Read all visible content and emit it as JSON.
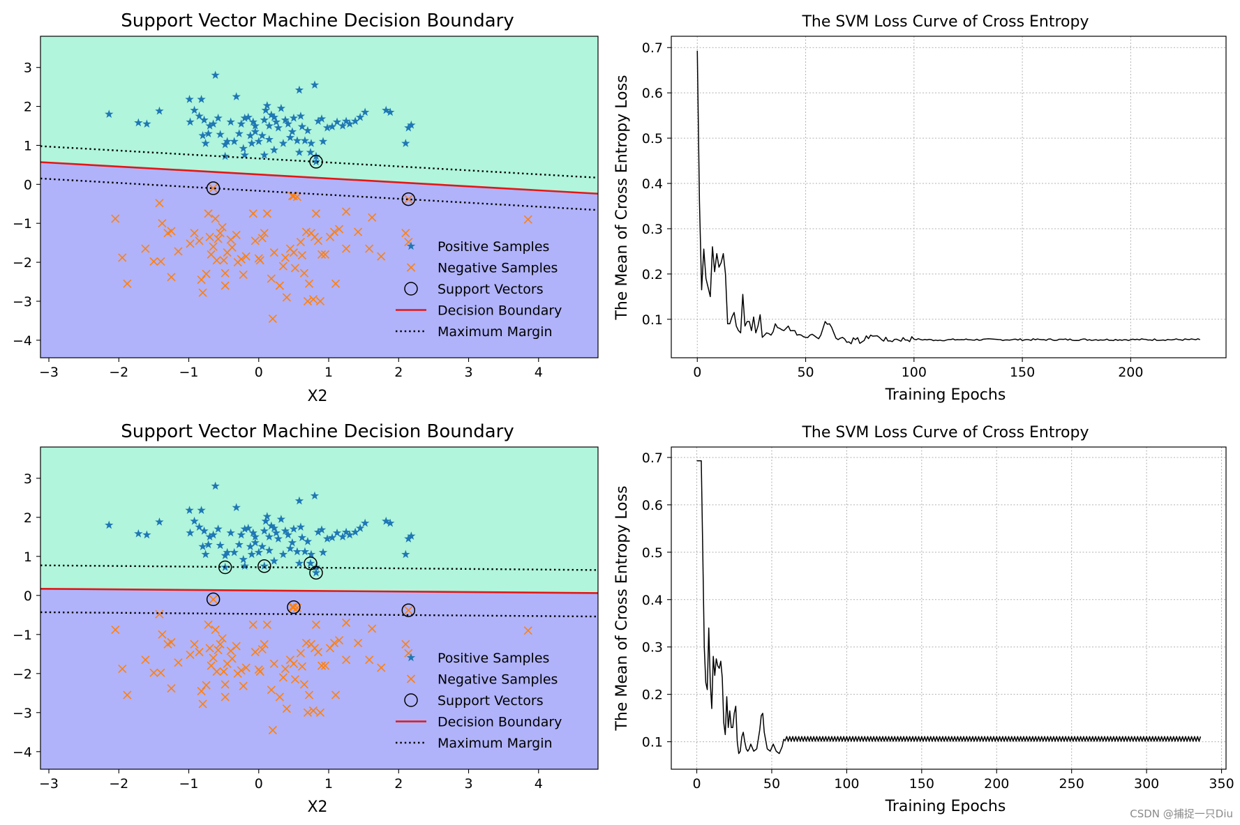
{
  "colors": {
    "positive_region": "#b0f5dc",
    "negative_region": "#b0b3fa",
    "positive_marker": "#1f77b4",
    "negative_marker": "#ff7f0e",
    "boundary": "#e01818",
    "margin": "#000000",
    "support": "#000000",
    "loss": "#000000",
    "grid": "#b0b0b0"
  },
  "watermark": "CSDN @捕捉一只Diu",
  "positive_samples": [
    [
      -2.14,
      1.8
    ],
    [
      -1.72,
      1.58
    ],
    [
      -1.6,
      1.55
    ],
    [
      -1.42,
      1.88
    ],
    [
      -0.99,
      2.18
    ],
    [
      -0.82,
      2.18
    ],
    [
      -0.98,
      1.6
    ],
    [
      -0.92,
      1.9
    ],
    [
      -0.85,
      1.75
    ],
    [
      -0.78,
      1.65
    ],
    [
      -0.7,
      1.5
    ],
    [
      -0.62,
      2.8
    ],
    [
      -0.58,
      1.7
    ],
    [
      -0.65,
      1.55
    ],
    [
      -0.72,
      1.3
    ],
    [
      -0.8,
      1.25
    ],
    [
      -0.76,
      1.05
    ],
    [
      -0.55,
      1.28
    ],
    [
      -0.48,
      1.02
    ],
    [
      -0.45,
      1.1
    ],
    [
      -0.35,
      1.1
    ],
    [
      -0.32,
      2.25
    ],
    [
      -0.25,
      1.55
    ],
    [
      -0.2,
      1.7
    ],
    [
      -0.15,
      1.72
    ],
    [
      -0.08,
      1.6
    ],
    [
      -0.05,
      1.35
    ],
    [
      -0.12,
      1.25
    ],
    [
      -0.22,
      0.92
    ],
    [
      -0.1,
      1.05
    ],
    [
      0.0,
      1.1
    ],
    [
      0.05,
      1.25
    ],
    [
      0.08,
      1.65
    ],
    [
      0.1,
      1.9
    ],
    [
      0.12,
      2.02
    ],
    [
      0.15,
      1.5
    ],
    [
      0.18,
      1.78
    ],
    [
      0.22,
      1.72
    ],
    [
      0.25,
      1.6
    ],
    [
      0.28,
      1.45
    ],
    [
      0.32,
      1.95
    ],
    [
      0.38,
      1.65
    ],
    [
      0.42,
      1.55
    ],
    [
      0.5,
      1.7
    ],
    [
      0.55,
      1.12
    ],
    [
      0.58,
      2.42
    ],
    [
      0.62,
      1.48
    ],
    [
      0.66,
      1.12
    ],
    [
      0.7,
      1.38
    ],
    [
      0.75,
      1.05
    ],
    [
      0.8,
      2.55
    ],
    [
      0.85,
      1.62
    ],
    [
      0.9,
      1.68
    ],
    [
      0.92,
      1.1
    ],
    [
      0.98,
      1.45
    ],
    [
      1.05,
      1.48
    ],
    [
      1.12,
      1.6
    ],
    [
      1.2,
      1.5
    ],
    [
      1.25,
      1.62
    ],
    [
      1.3,
      1.55
    ],
    [
      1.38,
      1.62
    ],
    [
      1.45,
      1.72
    ],
    [
      1.52,
      1.85
    ],
    [
      1.82,
      1.9
    ],
    [
      1.88,
      1.85
    ],
    [
      2.1,
      1.05
    ],
    [
      2.14,
      1.45
    ],
    [
      2.18,
      1.52
    ],
    [
      -0.2,
      0.75
    ],
    [
      0.22,
      0.88
    ],
    [
      0.58,
      0.82
    ],
    [
      0.82,
      0.58
    ],
    [
      -0.48,
      0.72
    ],
    [
      0.08,
      0.75
    ],
    [
      0.74,
      0.82
    ],
    [
      0.82,
      0.72
    ],
    [
      -0.05,
      1.5
    ],
    [
      0.45,
      1.2
    ],
    [
      0.35,
      1.05
    ],
    [
      0.6,
      1.75
    ],
    [
      -0.4,
      1.6
    ],
    [
      -0.28,
      1.3
    ],
    [
      0.15,
      1.15
    ],
    [
      0.48,
      1.35
    ]
  ],
  "negative_samples": [
    [
      -2.05,
      -0.88
    ],
    [
      -1.95,
      -1.88
    ],
    [
      -1.88,
      -2.55
    ],
    [
      -1.62,
      -1.65
    ],
    [
      -1.5,
      -1.98
    ],
    [
      -1.42,
      -0.48
    ],
    [
      -1.4,
      -1.98
    ],
    [
      -1.38,
      -1.0
    ],
    [
      -1.3,
      -1.25
    ],
    [
      -1.25,
      -1.2
    ],
    [
      -1.25,
      -2.38
    ],
    [
      -0.98,
      -1.52
    ],
    [
      -0.92,
      -1.25
    ],
    [
      -0.85,
      -1.45
    ],
    [
      -0.82,
      -2.45
    ],
    [
      -0.8,
      -2.78
    ],
    [
      -0.75,
      -2.3
    ],
    [
      -0.72,
      -0.75
    ],
    [
      -0.7,
      -1.35
    ],
    [
      -0.68,
      -1.8
    ],
    [
      -0.65,
      -1.6
    ],
    [
      -0.62,
      -0.88
    ],
    [
      -0.58,
      -1.4
    ],
    [
      -0.55,
      -1.25
    ],
    [
      -0.52,
      -1.1
    ],
    [
      -0.5,
      -1.95
    ],
    [
      -0.48,
      -2.28
    ],
    [
      -0.48,
      -2.6
    ],
    [
      -0.45,
      -1.75
    ],
    [
      -0.4,
      -1.42
    ],
    [
      -0.38,
      -1.62
    ],
    [
      -0.32,
      -1.3
    ],
    [
      -0.25,
      -1.92
    ],
    [
      -0.22,
      -2.32
    ],
    [
      -0.18,
      -1.85
    ],
    [
      -0.08,
      -0.75
    ],
    [
      -0.05,
      -1.45
    ],
    [
      0.0,
      -1.9
    ],
    [
      0.02,
      -1.95
    ],
    [
      0.05,
      -1.38
    ],
    [
      0.08,
      -1.25
    ],
    [
      0.12,
      -0.75
    ],
    [
      0.18,
      -2.42
    ],
    [
      0.2,
      -3.45
    ],
    [
      0.22,
      -1.75
    ],
    [
      0.3,
      -2.6
    ],
    [
      0.35,
      -2.1
    ],
    [
      0.38,
      -1.88
    ],
    [
      0.45,
      -1.65
    ],
    [
      0.48,
      -0.3
    ],
    [
      0.5,
      -1.75
    ],
    [
      0.52,
      -2.15
    ],
    [
      0.55,
      -0.32
    ],
    [
      0.6,
      -1.48
    ],
    [
      0.62,
      -1.82
    ],
    [
      0.65,
      -2.28
    ],
    [
      0.68,
      -1.22
    ],
    [
      0.7,
      -3.0
    ],
    [
      0.72,
      -2.55
    ],
    [
      0.75,
      -1.25
    ],
    [
      0.78,
      -2.95
    ],
    [
      0.8,
      -1.35
    ],
    [
      0.82,
      -0.75
    ],
    [
      0.85,
      -1.45
    ],
    [
      0.88,
      -3.0
    ],
    [
      0.9,
      -1.8
    ],
    [
      0.95,
      -1.8
    ],
    [
      1.02,
      -1.35
    ],
    [
      1.08,
      -1.22
    ],
    [
      1.1,
      -2.55
    ],
    [
      1.15,
      -1.15
    ],
    [
      1.25,
      -0.7
    ],
    [
      1.42,
      -1.22
    ],
    [
      1.58,
      -1.65
    ],
    [
      1.62,
      -0.85
    ],
    [
      1.75,
      -1.85
    ],
    [
      2.1,
      -1.25
    ],
    [
      2.14,
      -1.48
    ],
    [
      2.14,
      -0.38
    ],
    [
      3.85,
      -0.9
    ],
    [
      -0.65,
      -0.1
    ],
    [
      0.5,
      -0.3
    ],
    [
      1.25,
      -1.65
    ],
    [
      -1.15,
      -1.72
    ],
    [
      -0.3,
      -2.0
    ],
    [
      0.4,
      -2.9
    ],
    [
      -0.6,
      -1.95
    ]
  ],
  "plots": [
    {
      "title": "Support Vector Machine Decision Boundary",
      "xlabel": "X2",
      "xlim": [
        -3.12,
        4.85
      ],
      "ylim": [
        -4.45,
        3.8
      ],
      "xticks": [
        -3,
        -2,
        -1,
        0,
        1,
        2,
        3,
        4
      ],
      "yticks": [
        -4,
        -3,
        -2,
        -1,
        0,
        1,
        2,
        3
      ],
      "boundary_line": {
        "x": [
          -3.12,
          4.85
        ],
        "y": [
          0.57,
          -0.24
        ]
      },
      "margin_upper": {
        "x": [
          -3.12,
          4.85
        ],
        "y": [
          0.98,
          0.17
        ]
      },
      "margin_lower": {
        "x": [
          -3.12,
          4.85
        ],
        "y": [
          0.15,
          -0.66
        ]
      },
      "support_vectors": [
        [
          -0.65,
          -0.1
        ],
        [
          0.82,
          0.58
        ],
        [
          2.14,
          -0.38
        ]
      ],
      "legend": [
        "Positive Samples",
        "Negative Samples",
        "Support Vectors",
        "Decision Boundary",
        "Maximum Margin"
      ]
    },
    {
      "title": "Support Vector Machine Decision Boundary",
      "xlabel": "X2",
      "xlim": [
        -3.12,
        4.85
      ],
      "ylim": [
        -4.45,
        3.8
      ],
      "xticks": [
        -3,
        -2,
        -1,
        0,
        1,
        2,
        3,
        4
      ],
      "yticks": [
        -4,
        -3,
        -2,
        -1,
        0,
        1,
        2,
        3
      ],
      "boundary_line": {
        "x": [
          -3.12,
          4.85
        ],
        "y": [
          0.17,
          0.06
        ]
      },
      "margin_upper": {
        "x": [
          -3.12,
          4.85
        ],
        "y": [
          0.77,
          0.65
        ]
      },
      "margin_lower": {
        "x": [
          -3.12,
          4.85
        ],
        "y": [
          -0.43,
          -0.54
        ]
      },
      "support_vectors": [
        [
          -0.48,
          0.72
        ],
        [
          0.08,
          0.75
        ],
        [
          0.74,
          0.82
        ],
        [
          0.82,
          0.58
        ],
        [
          -0.65,
          -0.1
        ],
        [
          0.5,
          -0.3
        ],
        [
          2.14,
          -0.38
        ]
      ],
      "legend": [
        "Positive Samples",
        "Negative Samples",
        "Support Vectors",
        "Decision Boundary",
        "Maximum Margin"
      ]
    }
  ],
  "loss_plots": [
    {
      "title": "The SVM Loss Curve of Cross Entropy",
      "xlabel": "Training Epochs",
      "ylabel": "The Mean of Cross Entropy Loss",
      "xlim": [
        -12,
        244
      ],
      "ylim": [
        0.015,
        0.725
      ],
      "xticks": [
        0,
        50,
        100,
        150,
        200
      ],
      "yticks": [
        0.1,
        0.2,
        0.3,
        0.4,
        0.5,
        0.6,
        0.7
      ],
      "n_epochs": 233,
      "profile": [
        [
          0,
          0.693
        ],
        [
          1,
          0.36
        ],
        [
          2,
          0.165
        ],
        [
          3,
          0.255
        ],
        [
          4,
          0.19
        ],
        [
          5,
          0.17
        ],
        [
          6,
          0.15
        ],
        [
          7,
          0.26
        ],
        [
          8,
          0.205
        ],
        [
          9,
          0.245
        ],
        [
          10,
          0.215
        ],
        [
          11,
          0.225
        ],
        [
          12,
          0.245
        ],
        [
          13,
          0.2
        ],
        [
          14,
          0.09
        ],
        [
          15,
          0.09
        ],
        [
          16,
          0.105
        ],
        [
          17,
          0.115
        ],
        [
          18,
          0.085
        ],
        [
          19,
          0.075
        ],
        [
          20,
          0.07
        ],
        [
          21,
          0.155
        ],
        [
          22,
          0.085
        ],
        [
          23,
          0.095
        ],
        [
          24,
          0.095
        ],
        [
          25,
          0.075
        ],
        [
          26,
          0.105
        ],
        [
          27,
          0.07
        ],
        [
          28,
          0.085
        ],
        [
          29,
          0.11
        ],
        [
          30,
          0.06
        ],
        [
          32,
          0.07
        ],
        [
          34,
          0.065
        ],
        [
          36,
          0.09
        ],
        [
          38,
          0.08
        ],
        [
          40,
          0.075
        ],
        [
          42,
          0.085
        ],
        [
          44,
          0.075
        ],
        [
          46,
          0.065
        ],
        [
          48,
          0.065
        ],
        [
          50,
          0.06
        ],
        [
          52,
          0.065
        ],
        [
          55,
          0.06
        ],
        [
          57,
          0.065
        ],
        [
          59,
          0.095
        ],
        [
          61,
          0.09
        ],
        [
          63,
          0.07
        ],
        [
          65,
          0.055
        ],
        [
          67,
          0.06
        ],
        [
          70,
          0.05
        ],
        [
          73,
          0.055
        ],
        [
          76,
          0.05
        ],
        [
          80,
          0.065
        ],
        [
          84,
          0.06
        ],
        [
          88,
          0.052
        ],
        [
          92,
          0.056
        ],
        [
          100,
          0.056
        ],
        [
          110,
          0.054
        ],
        [
          120,
          0.055
        ],
        [
          140,
          0.055
        ],
        [
          160,
          0.055
        ],
        [
          200,
          0.055
        ],
        [
          232,
          0.055
        ]
      ],
      "noise": 0.004
    },
    {
      "title": "The SVM Loss Curve of Cross Entropy",
      "xlabel": "Training Epochs",
      "ylabel": "The Mean of Cross Entropy Loss",
      "xlim": [
        -17,
        353
      ],
      "ylim": [
        0.042,
        0.722
      ],
      "xticks": [
        0,
        50,
        100,
        150,
        200,
        250,
        300,
        350
      ],
      "yticks": [
        0.1,
        0.2,
        0.3,
        0.4,
        0.5,
        0.6,
        0.7
      ],
      "n_epochs": 337,
      "profile": [
        [
          0,
          0.693
        ],
        [
          3,
          0.693
        ],
        [
          4,
          0.5
        ],
        [
          5,
          0.3
        ],
        [
          6,
          0.225
        ],
        [
          7,
          0.21
        ],
        [
          8,
          0.34
        ],
        [
          9,
          0.225
        ],
        [
          10,
          0.17
        ],
        [
          11,
          0.28
        ],
        [
          12,
          0.24
        ],
        [
          13,
          0.275
        ],
        [
          14,
          0.26
        ],
        [
          15,
          0.255
        ],
        [
          16,
          0.27
        ],
        [
          17,
          0.235
        ],
        [
          18,
          0.14
        ],
        [
          19,
          0.115
        ],
        [
          20,
          0.195
        ],
        [
          21,
          0.13
        ],
        [
          22,
          0.165
        ],
        [
          23,
          0.13
        ],
        [
          24,
          0.13
        ],
        [
          25,
          0.16
        ],
        [
          26,
          0.175
        ],
        [
          27,
          0.1
        ],
        [
          28,
          0.075
        ],
        [
          29,
          0.08
        ],
        [
          30,
          0.11
        ],
        [
          31,
          0.12
        ],
        [
          32,
          0.1
        ],
        [
          33,
          0.085
        ],
        [
          34,
          0.08
        ],
        [
          35,
          0.085
        ],
        [
          36,
          0.095
        ],
        [
          38,
          0.08
        ],
        [
          40,
          0.085
        ],
        [
          42,
          0.125
        ],
        [
          43,
          0.155
        ],
        [
          44,
          0.16
        ],
        [
          45,
          0.12
        ],
        [
          47,
          0.085
        ],
        [
          49,
          0.08
        ],
        [
          51,
          0.095
        ],
        [
          53,
          0.08
        ],
        [
          55,
          0.075
        ],
        [
          57,
          0.09
        ],
        [
          58,
          0.105
        ],
        [
          60,
          0.1
        ]
      ],
      "oscillation": {
        "start": 60,
        "low": 0.101,
        "high": 0.111
      }
    }
  ],
  "chart_data": [
    {
      "type": "scatter",
      "title": "Support Vector Machine Decision Boundary",
      "xlabel": "X2",
      "ylabel": "",
      "xlim": [
        -3.12,
        4.85
      ],
      "ylim": [
        -4.45,
        3.8
      ],
      "series": [
        "Positive Samples",
        "Negative Samples",
        "Support Vectors",
        "Decision Boundary",
        "Maximum Margin"
      ],
      "legend_position": "lower-right"
    },
    {
      "type": "line",
      "title": "The SVM Loss Curve of Cross Entropy",
      "xlabel": "Training Epochs",
      "ylabel": "The Mean of Cross Entropy Loss",
      "xlim": [
        -12,
        244
      ],
      "ylim": [
        0.015,
        0.725
      ],
      "grid": true
    },
    {
      "type": "scatter",
      "title": "Support Vector Machine Decision Boundary",
      "xlabel": "X2",
      "ylabel": "",
      "xlim": [
        -3.12,
        4.85
      ],
      "ylim": [
        -4.45,
        3.8
      ],
      "series": [
        "Positive Samples",
        "Negative Samples",
        "Support Vectors",
        "Decision Boundary",
        "Maximum Margin"
      ],
      "legend_position": "lower-right"
    },
    {
      "type": "line",
      "title": "The SVM Loss Curve of Cross Entropy",
      "xlabel": "Training Epochs",
      "ylabel": "The Mean of Cross Entropy Loss",
      "xlim": [
        -17,
        353
      ],
      "ylim": [
        0.042,
        0.722
      ],
      "grid": true
    }
  ]
}
